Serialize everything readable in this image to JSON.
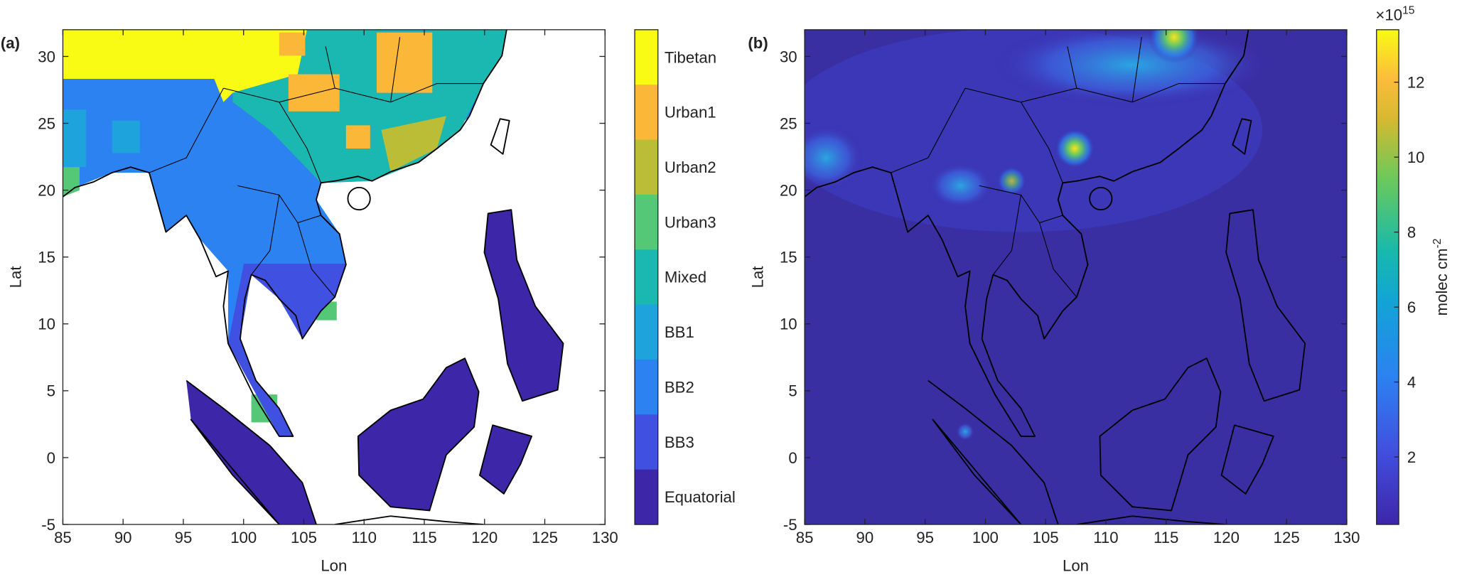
{
  "panels": [
    {
      "label": "(a)",
      "xlabel": "Lon",
      "ylabel": "Lat",
      "xlim": [
        85,
        130
      ],
      "ylim": [
        -5,
        32
      ],
      "xticks": [
        85,
        90,
        95,
        100,
        105,
        110,
        115,
        120,
        125,
        130
      ],
      "yticks": [
        -5,
        0,
        5,
        10,
        15,
        20,
        25,
        30
      ],
      "colorbar": {
        "categories": [
          "Tibetan",
          "Urban1",
          "Urban2",
          "Urban3",
          "Mixed",
          "BB1",
          "BB2",
          "BB3",
          "Equatorial"
        ],
        "colors": [
          "#f9fb14",
          "#fbb838",
          "#bcbd36",
          "#55c878",
          "#1ab8b0",
          "#1fa3dc",
          "#2c82f0",
          "#4050e0",
          "#3e26a8"
        ]
      }
    },
    {
      "label": "(b)",
      "xlabel": "Lon",
      "ylabel": "Lat",
      "xlim": [
        85,
        130
      ],
      "ylim": [
        -5,
        32
      ],
      "xticks": [
        85,
        90,
        95,
        100,
        105,
        110,
        115,
        120,
        125,
        130
      ],
      "yticks": [
        -5,
        0,
        5,
        10,
        15,
        20,
        25,
        30
      ],
      "colorbar": {
        "lim": [
          0.2,
          13.4
        ],
        "ticks": [
          2,
          4,
          6,
          8,
          10,
          12
        ],
        "label": "molec cm",
        "label_sup": "-2",
        "exponent": "×10",
        "exponent_sup": "15"
      }
    }
  ]
}
